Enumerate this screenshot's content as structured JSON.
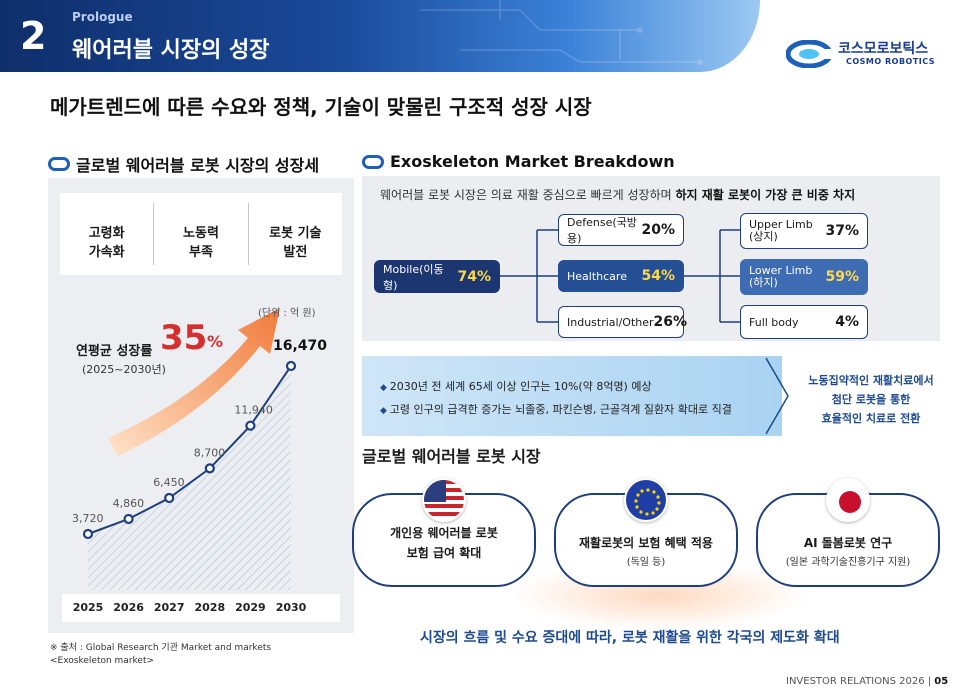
{
  "header": {
    "number": "2",
    "prologue": "Prologue",
    "title": "웨어러블 시장의 성장"
  },
  "logo": {
    "kr": "코스모로보틱스",
    "en": "COSMO ROBOTICS"
  },
  "headline": "메가트렌드에 따른 수요와 정책, 기술이 맞물린 구조적 성장 시장",
  "left": {
    "section_title": "글로벌 웨어러블 로봇 시장의 성장세",
    "drivers": [
      {
        "l1": "고령화",
        "l2": "가속화"
      },
      {
        "l1": "노동력",
        "l2": "부족"
      },
      {
        "l1": "로봇 기술",
        "l2": "발전"
      }
    ],
    "unit": "(단위 : 억 원)",
    "cagr_label": "연평균 성장률",
    "cagr_value": "35",
    "cagr_pct": "%",
    "cagr_years": "(2025~2030년)",
    "source_1": "※ 출처 : Global Research 기관 Market and markets",
    "source_2": "<Exoskeleton market>"
  },
  "chart_data": {
    "type": "line",
    "categories": [
      "2025",
      "2026",
      "2027",
      "2028",
      "2029",
      "2030"
    ],
    "values": [
      3720,
      4860,
      6450,
      8700,
      11940,
      16470
    ],
    "labels": [
      "3,720",
      "4,860",
      "6,450",
      "8,700",
      "11,940",
      "16,470"
    ],
    "ylabel": "",
    "ylim": [
      0,
      18000
    ],
    "grid": false,
    "colors": {
      "line": "#1e3f7a",
      "area": "#c5d7ee"
    }
  },
  "right": {
    "section_title": "Exoskeleton Market Breakdown",
    "desc_plain": "웨어러블 로봇 시장은 의료 재활 중심으로 빠르게 성장하며 ",
    "desc_bold": "하지 재활 로봇이 가장 큰 비중 차지",
    "root": {
      "label": "Mobile(이동형)",
      "value": "74%"
    },
    "mid": [
      {
        "label": "Defense(국방용)",
        "value": "20%"
      },
      {
        "label": "Healthcare",
        "value": "54%"
      },
      {
        "label": "Industrial/Other",
        "value": "26%"
      }
    ],
    "leaf": [
      {
        "l1": "Upper Limb",
        "l2": "(상지)",
        "value": "37%"
      },
      {
        "l1": "Lower Limb",
        "l2": "(하지)",
        "value": "59%"
      },
      {
        "l1": "Full body",
        "l2": "",
        "value": "4%"
      }
    ],
    "bullets": [
      "2030년 전 세계 65세 이상 인구는 10%(약 8억명) 예상",
      "고령 인구의 급격한 증가는 뇌졸중, 파킨슨병, 근골격계 질환자 확대로 직결"
    ],
    "result": [
      "노동집약적인 재활치료에서",
      "첨단 로봇을 통한",
      "효율적인 치료로 전환"
    ],
    "market_title": "글로벌 웨어러블 로봇 시장",
    "cards": [
      {
        "t1": "개인용 웨어러블 로봇",
        "t2": "보험 급여 확대",
        "sub": "",
        "flag": "usa-flag-icon"
      },
      {
        "t1": "재활로봇의 보험 혜택 적용",
        "t2": "",
        "sub": "(독일 등)",
        "flag": "eu-flag-icon"
      },
      {
        "t1": "AI 돌봄로봇 연구",
        "t2": "",
        "sub": "(일본 과학기술진흥기구 지원)",
        "flag": "japan-flag-icon"
      }
    ],
    "conclusion": "시장의 흐름 및 수요 증대에 따라, 로봇 재활을 위한 각국의 제도화 확대"
  },
  "footer": {
    "text": "INVESTOR RELATIONS 2026 | ",
    "page": "05"
  }
}
